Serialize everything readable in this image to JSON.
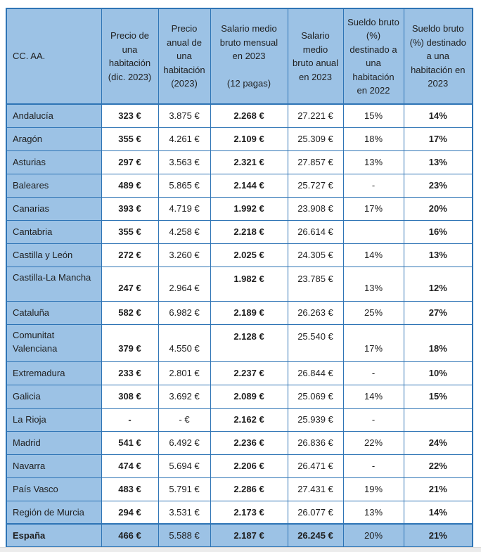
{
  "colors": {
    "fill_blue": "#9CC2E5",
    "border_blue": "#2E74B5"
  },
  "chart_data": {
    "type": "table",
    "columns": [
      "CC. AA.",
      "Precio de una habitación (dic. 2023)",
      "Precio anual de una habitación (2023)",
      "Salario medio bruto mensual\nen 2023\n\n(12 pagas)",
      "Salario medio bruto anual en 2023",
      "Sueldo bruto (%) destinado a una habitación en 2022",
      "Sueldo bruto (%) destinado a una habitación en 2023"
    ],
    "rows": [
      {
        "region": "Andalucía",
        "precio_mes": "323 €",
        "precio_anual": "3.875 €",
        "salario_mensual": "2.268 €",
        "salario_anual": "27.221 €",
        "sueldo_2022": "15%",
        "sueldo_2023": "14%"
      },
      {
        "region": "Aragón",
        "precio_mes": "355 €",
        "precio_anual": "4.261 €",
        "salario_mensual": "2.109 €",
        "salario_anual": "25.309 €",
        "sueldo_2022": "18%",
        "sueldo_2023": "17%"
      },
      {
        "region": "Asturias",
        "precio_mes": "297 €",
        "precio_anual": "3.563 €",
        "salario_mensual": "2.321 €",
        "salario_anual": "27.857 €",
        "sueldo_2022": "13%",
        "sueldo_2023": "13%"
      },
      {
        "region": "Baleares",
        "precio_mes": "489 €",
        "precio_anual": "5.865 €",
        "salario_mensual": "2.144 €",
        "salario_anual": "25.727 €",
        "sueldo_2022": "-",
        "sueldo_2023": "23%"
      },
      {
        "region": "Canarias",
        "precio_mes": "393 €",
        "precio_anual": "4.719 €",
        "salario_mensual": "1.992 €",
        "salario_anual": "23.908 €",
        "sueldo_2022": "17%",
        "sueldo_2023": "20%"
      },
      {
        "region": "Cantabria",
        "precio_mes": "355 €",
        "precio_anual": "4.258 €",
        "salario_mensual": "2.218 €",
        "salario_anual": "26.614 €",
        "sueldo_2022": "",
        "sueldo_2023": "16%"
      },
      {
        "region": "Castilla y León",
        "precio_mes": "272 €",
        "precio_anual": "3.260 €",
        "salario_mensual": "2.025 €",
        "salario_anual": "24.305 €",
        "sueldo_2022": "14%",
        "sueldo_2023": "13%"
      },
      {
        "region": "Castilla-La Mancha",
        "precio_mes": "247 €",
        "precio_anual": "2.964 €",
        "salario_mensual": "1.982 €",
        "salario_anual": "23.785 €",
        "sueldo_2022": "13%",
        "sueldo_2023": "12%"
      },
      {
        "region": "Cataluña",
        "precio_mes": "582 €",
        "precio_anual": "6.982 €",
        "salario_mensual": "2.189 €",
        "salario_anual": "26.263 €",
        "sueldo_2022": "25%",
        "sueldo_2023": "27%"
      },
      {
        "region": "Comunitat Valenciana",
        "precio_mes": "379 €",
        "precio_anual": "4.550 €",
        "salario_mensual": "2.128 €",
        "salario_anual": "25.540 €",
        "sueldo_2022": "17%",
        "sueldo_2023": "18%"
      },
      {
        "region": "Extremadura",
        "precio_mes": "233 €",
        "precio_anual": "2.801 €",
        "salario_mensual": "2.237 €",
        "salario_anual": "26.844 €",
        "sueldo_2022": "-",
        "sueldo_2023": "10%"
      },
      {
        "region": "Galicia",
        "precio_mes": "308 €",
        "precio_anual": "3.692 €",
        "salario_mensual": "2.089 €",
        "salario_anual": "25.069 €",
        "sueldo_2022": "14%",
        "sueldo_2023": "15%"
      },
      {
        "region": "La Rioja",
        "precio_mes": "-",
        "precio_anual": "- €",
        "salario_mensual": "2.162 €",
        "salario_anual": "25.939 €",
        "sueldo_2022": "-",
        "sueldo_2023": ""
      },
      {
        "region": "Madrid",
        "precio_mes": "541 €",
        "precio_anual": "6.492 €",
        "salario_mensual": "2.236 €",
        "salario_anual": "26.836 €",
        "sueldo_2022": "22%",
        "sueldo_2023": "24%"
      },
      {
        "region": "Navarra",
        "precio_mes": "474 €",
        "precio_anual": "5.694 €",
        "salario_mensual": "2.206 €",
        "salario_anual": "26.471 €",
        "sueldo_2022": "-",
        "sueldo_2023": "22%"
      },
      {
        "region": "País Vasco",
        "precio_mes": "483 €",
        "precio_anual": "5.791 €",
        "salario_mensual": "2.286 €",
        "salario_anual": "27.431 €",
        "sueldo_2022": "19%",
        "sueldo_2023": "21%"
      },
      {
        "region": "Región de Murcia",
        "precio_mes": "294 €",
        "precio_anual": "3.531 €",
        "salario_mensual": "2.173 €",
        "salario_anual": "26.077 €",
        "sueldo_2022": "13%",
        "sueldo_2023": "14%"
      },
      {
        "region": "España",
        "precio_mes": "466 €",
        "precio_anual": "5.588 €",
        "salario_mensual": "2.187 €",
        "salario_anual": "26.245 €",
        "sueldo_2022": "20%",
        "sueldo_2023": "21%"
      }
    ]
  }
}
